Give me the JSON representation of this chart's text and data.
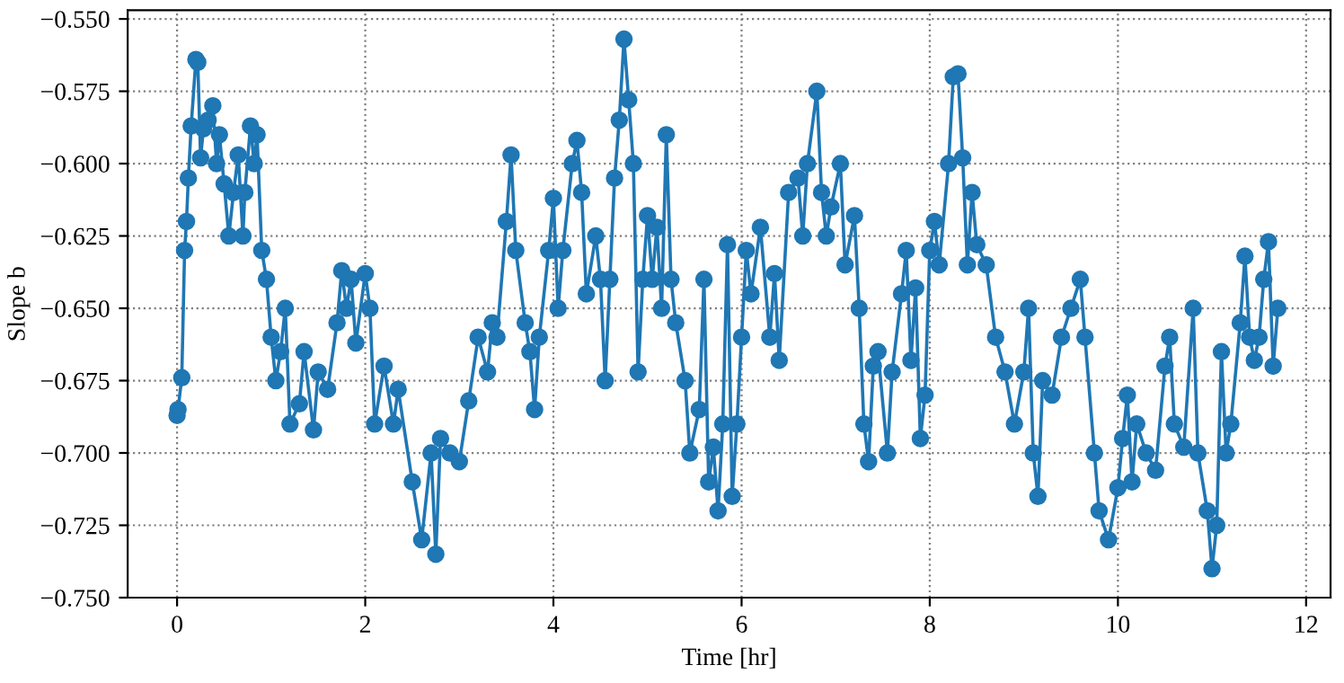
{
  "chart_data": {
    "type": "line",
    "xlabel": "Time [hr]",
    "ylabel": "Slope b",
    "x": [
      0.0,
      0.01,
      0.05,
      0.08,
      0.1,
      0.12,
      0.15,
      0.2,
      0.22,
      0.25,
      0.28,
      0.33,
      0.38,
      0.42,
      0.45,
      0.5,
      0.55,
      0.6,
      0.65,
      0.7,
      0.72,
      0.78,
      0.82,
      0.85,
      0.9,
      0.95,
      1.0,
      1.05,
      1.1,
      1.15,
      1.2,
      1.3,
      1.35,
      1.45,
      1.5,
      1.6,
      1.7,
      1.75,
      1.8,
      1.85,
      1.9,
      2.0,
      2.05,
      2.1,
      2.2,
      2.3,
      2.35,
      2.5,
      2.6,
      2.7,
      2.75,
      2.8,
      2.9,
      3.0,
      3.1,
      3.2,
      3.3,
      3.35,
      3.4,
      3.5,
      3.55,
      3.6,
      3.7,
      3.75,
      3.8,
      3.85,
      3.95,
      4.0,
      4.05,
      4.1,
      4.2,
      4.25,
      4.3,
      4.35,
      4.45,
      4.5,
      4.55,
      4.6,
      4.65,
      4.7,
      4.75,
      4.8,
      4.85,
      4.9,
      4.95,
      5.0,
      5.05,
      5.1,
      5.15,
      5.2,
      5.25,
      5.3,
      5.4,
      5.45,
      5.55,
      5.6,
      5.65,
      5.7,
      5.75,
      5.8,
      5.85,
      5.9,
      5.95,
      6.0,
      6.05,
      6.1,
      6.2,
      6.3,
      6.35,
      6.4,
      6.5,
      6.6,
      6.65,
      6.7,
      6.8,
      6.85,
      6.9,
      6.95,
      7.05,
      7.1,
      7.2,
      7.25,
      7.3,
      7.35,
      7.4,
      7.45,
      7.55,
      7.6,
      7.7,
      7.75,
      7.8,
      7.85,
      7.9,
      7.95,
      8.0,
      8.05,
      8.1,
      8.2,
      8.25,
      8.3,
      8.35,
      8.4,
      8.45,
      8.5,
      8.6,
      8.7,
      8.8,
      8.9,
      9.0,
      9.05,
      9.1,
      9.15,
      9.2,
      9.3,
      9.4,
      9.5,
      9.6,
      9.65,
      9.75,
      9.8,
      9.9,
      10.0,
      10.05,
      10.1,
      10.15,
      10.2,
      10.3,
      10.4,
      10.5,
      10.55,
      10.6,
      10.7,
      10.8,
      10.85,
      10.95,
      11.0,
      11.05,
      11.1,
      11.15,
      11.2,
      11.3,
      11.35,
      11.4,
      11.45,
      11.5,
      11.55,
      11.6,
      11.65,
      11.7
    ],
    "series": [
      {
        "color": "#1f77b4",
        "values": [
          -0.687,
          -0.685,
          -0.674,
          -0.63,
          -0.62,
          -0.605,
          -0.587,
          -0.564,
          -0.565,
          -0.598,
          -0.588,
          -0.585,
          -0.58,
          -0.6,
          -0.59,
          -0.607,
          -0.625,
          -0.61,
          -0.597,
          -0.625,
          -0.61,
          -0.587,
          -0.6,
          -0.59,
          -0.63,
          -0.64,
          -0.66,
          -0.675,
          -0.665,
          -0.65,
          -0.69,
          -0.683,
          -0.665,
          -0.692,
          -0.672,
          -0.678,
          -0.655,
          -0.637,
          -0.65,
          -0.64,
          -0.662,
          -0.638,
          -0.65,
          -0.69,
          -0.67,
          -0.69,
          -0.678,
          -0.71,
          -0.73,
          -0.7,
          -0.735,
          -0.695,
          -0.7,
          -0.703,
          -0.682,
          -0.66,
          -0.672,
          -0.655,
          -0.66,
          -0.62,
          -0.597,
          -0.63,
          -0.655,
          -0.665,
          -0.685,
          -0.66,
          -0.63,
          -0.612,
          -0.65,
          -0.63,
          -0.6,
          -0.592,
          -0.61,
          -0.645,
          -0.625,
          -0.64,
          -0.675,
          -0.64,
          -0.605,
          -0.585,
          -0.557,
          -0.578,
          -0.6,
          -0.672,
          -0.64,
          -0.618,
          -0.64,
          -0.622,
          -0.65,
          -0.59,
          -0.64,
          -0.655,
          -0.675,
          -0.7,
          -0.685,
          -0.64,
          -0.71,
          -0.698,
          -0.72,
          -0.69,
          -0.628,
          -0.715,
          -0.69,
          -0.66,
          -0.63,
          -0.645,
          -0.622,
          -0.66,
          -0.638,
          -0.668,
          -0.61,
          -0.605,
          -0.625,
          -0.6,
          -0.575,
          -0.61,
          -0.625,
          -0.615,
          -0.6,
          -0.635,
          -0.618,
          -0.65,
          -0.69,
          -0.703,
          -0.67,
          -0.665,
          -0.7,
          -0.672,
          -0.645,
          -0.63,
          -0.668,
          -0.643,
          -0.695,
          -0.68,
          -0.63,
          -0.62,
          -0.635,
          -0.6,
          -0.57,
          -0.569,
          -0.598,
          -0.635,
          -0.61,
          -0.628,
          -0.635,
          -0.66,
          -0.672,
          -0.69,
          -0.672,
          -0.65,
          -0.7,
          -0.715,
          -0.675,
          -0.68,
          -0.66,
          -0.65,
          -0.64,
          -0.66,
          -0.7,
          -0.72,
          -0.73,
          -0.712,
          -0.695,
          -0.68,
          -0.71,
          -0.69,
          -0.7,
          -0.706,
          -0.67,
          -0.66,
          -0.69,
          -0.698,
          -0.65,
          -0.7,
          -0.72,
          -0.74,
          -0.725,
          -0.665,
          -0.7,
          -0.69,
          -0.655,
          -0.632,
          -0.66,
          -0.668,
          -0.66,
          -0.64,
          -0.627,
          -0.67,
          -0.65
        ]
      }
    ],
    "xlim": [
      -0.525,
      12.26
    ],
    "ylim": [
      -0.75,
      -0.547
    ],
    "xticks": [
      0,
      2,
      4,
      6,
      8,
      10,
      12
    ],
    "yticks": [
      {
        "value": -0.75,
        "label": "−0.750"
      },
      {
        "value": -0.725,
        "label": "−0.725"
      },
      {
        "value": -0.7,
        "label": "−0.700"
      },
      {
        "value": -0.675,
        "label": "−0.675"
      },
      {
        "value": -0.65,
        "label": "−0.650"
      },
      {
        "value": -0.625,
        "label": "−0.625"
      },
      {
        "value": -0.6,
        "label": "−0.600"
      },
      {
        "value": -0.575,
        "label": "−0.575"
      },
      {
        "value": -0.55,
        "label": "−0.550"
      }
    ],
    "grid": true,
    "marker": "circle",
    "line_style": "solid"
  }
}
